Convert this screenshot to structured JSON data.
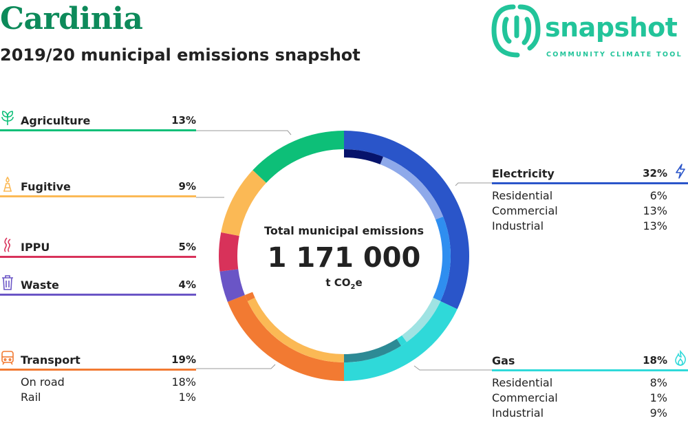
{
  "header": {
    "title": "Cardinia",
    "subtitle": "2019/20 municipal emissions snapshot"
  },
  "logo": {
    "word": "snapshot",
    "tagline": "COMMUNITY CLIMATE TOOL",
    "color": "#22c49a"
  },
  "center": {
    "title": "Total municipal emissions",
    "value": "1 171 000",
    "unit_prefix": "t CO",
    "unit_sub": "2",
    "unit_suffix": "e"
  },
  "chart_data": {
    "type": "pie",
    "total": 1171000,
    "unit": "t CO2e",
    "sectors": [
      {
        "name": "Electricity",
        "pct": "32%",
        "value": 32,
        "color": "#2a55c9",
        "subs": [
          {
            "name": "Residential",
            "pct": "6%",
            "value": 6,
            "color": "#06136b"
          },
          {
            "name": "Commercial",
            "pct": "13%",
            "value": 13,
            "color": "#8ea9ea"
          },
          {
            "name": "Industrial",
            "pct": "13%",
            "value": 13,
            "color": "#2f8ef0"
          }
        ]
      },
      {
        "name": "Gas",
        "pct": "18%",
        "value": 18,
        "color": "#2fd9d9",
        "subs": [
          {
            "name": "Residential",
            "pct": "8%",
            "value": 8,
            "color": "#9fe3e3"
          },
          {
            "name": "Commercial",
            "pct": "1%",
            "value": 1,
            "color": "#2fd9d9"
          },
          {
            "name": "Industrial",
            "pct": "9%",
            "value": 9,
            "color": "#2d8a95"
          }
        ]
      },
      {
        "name": "Transport",
        "pct": "19%",
        "value": 19,
        "color": "#f27a32",
        "subs": [
          {
            "name": "On road",
            "pct": "18%",
            "value": 18,
            "color": "#fbb955"
          },
          {
            "name": "Rail",
            "pct": "1%",
            "value": 1,
            "color": "#f27a32"
          }
        ]
      },
      {
        "name": "Waste",
        "pct": "4%",
        "value": 4,
        "color": "#6a55c6",
        "subs": []
      },
      {
        "name": "IPPU",
        "pct": "5%",
        "value": 5,
        "color": "#d8325a",
        "subs": []
      },
      {
        "name": "Fugitive",
        "pct": "9%",
        "value": 9,
        "color": "#fbb955",
        "subs": []
      },
      {
        "name": "Agriculture",
        "pct": "13%",
        "value": 13,
        "color": "#0dbf78",
        "subs": []
      }
    ]
  }
}
